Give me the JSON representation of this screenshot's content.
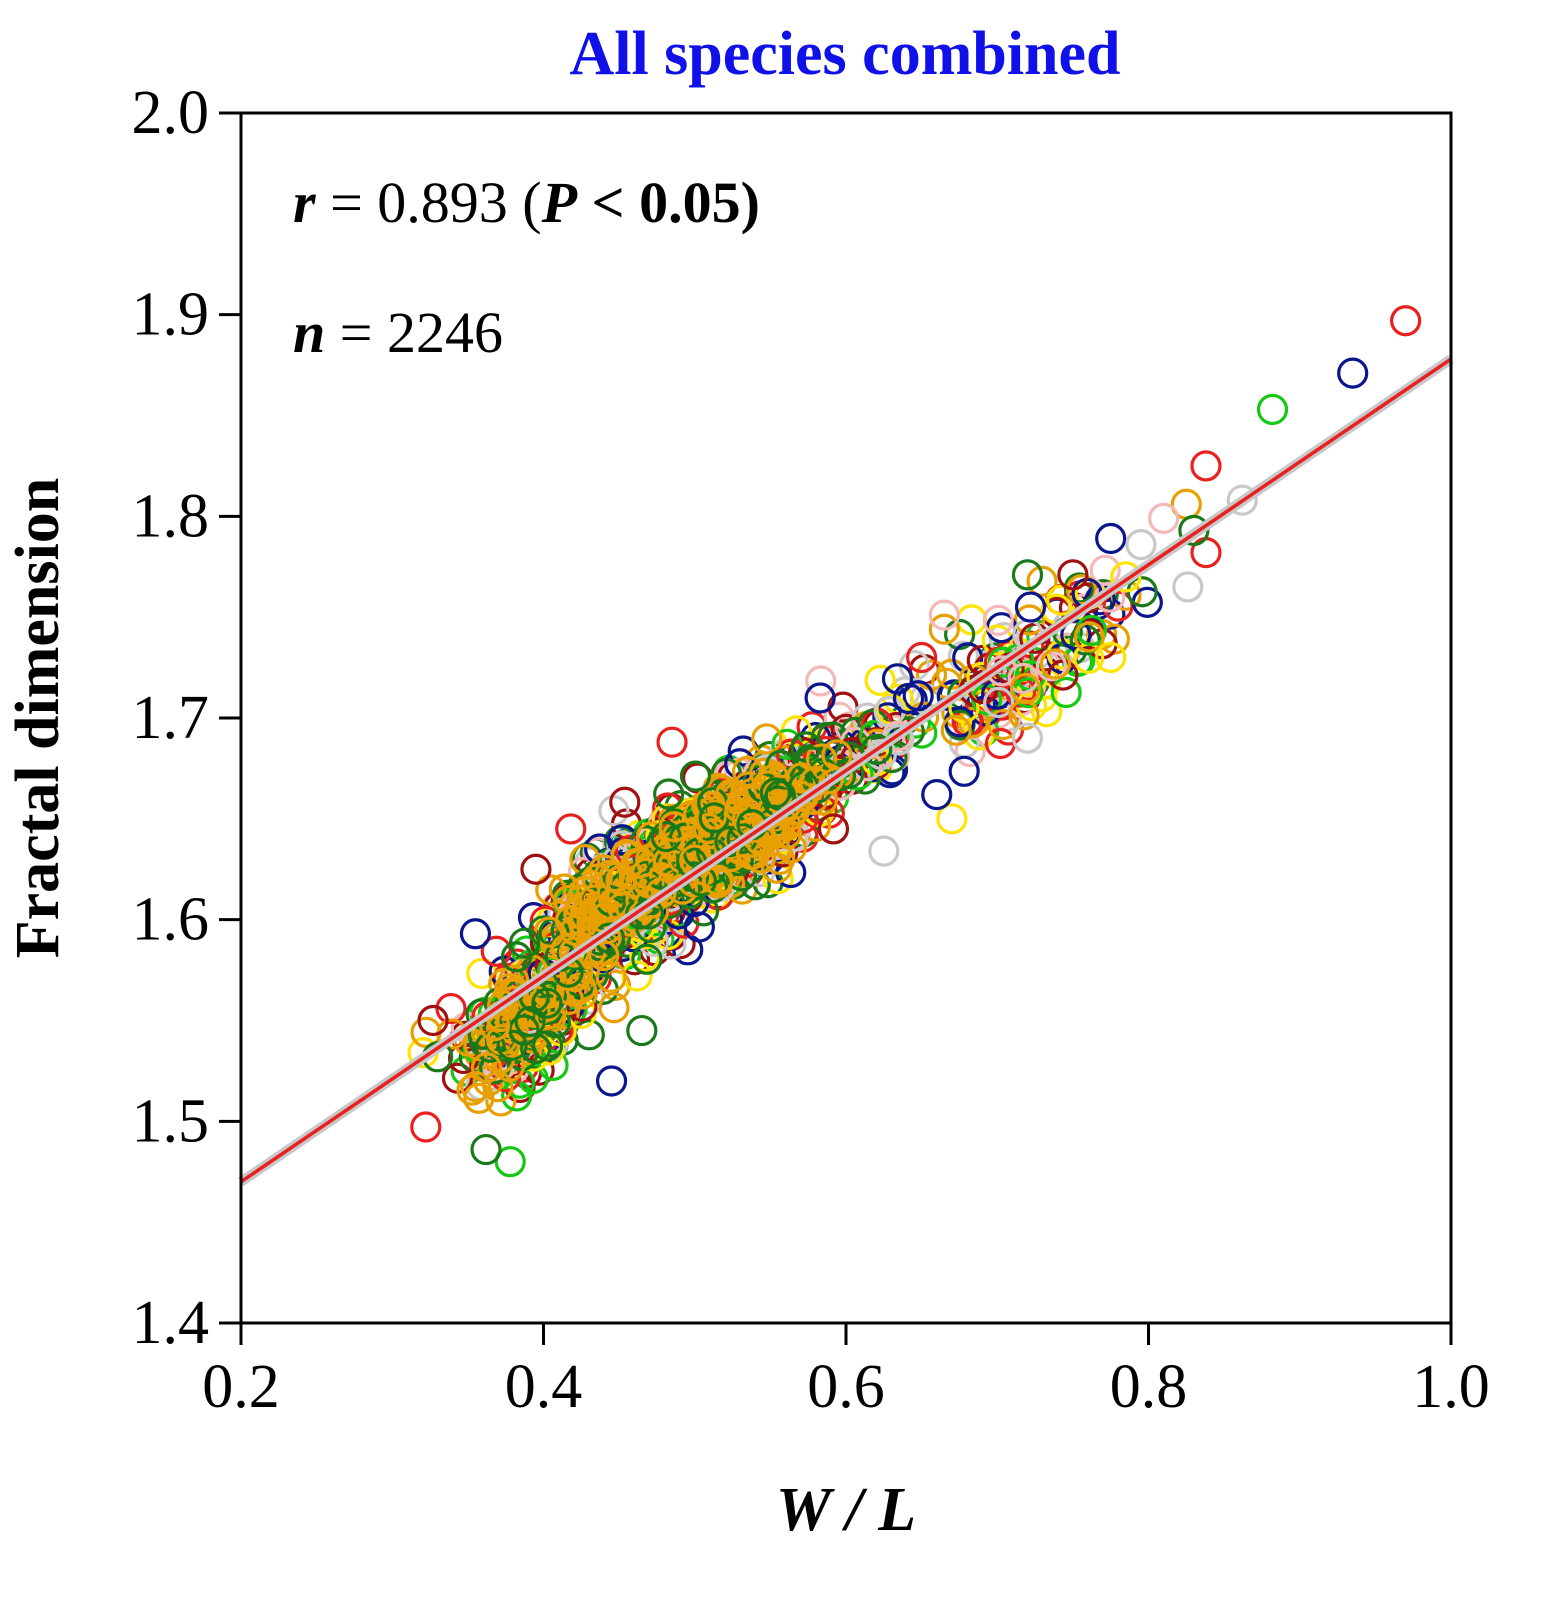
{
  "chart_data": {
    "type": "scatter",
    "title": "All species combined",
    "xlabel": "W / L",
    "ylabel": "Fractal dimension",
    "xlim": [
      0.2,
      1.0
    ],
    "ylim": [
      1.4,
      2.0
    ],
    "xticks": [
      "0.2",
      "0.4",
      "0.6",
      "0.8",
      "1.0"
    ],
    "yticks": [
      "1.4",
      "1.5",
      "1.6",
      "1.7",
      "1.8",
      "1.9",
      "2.0"
    ],
    "annotations": {
      "r_symbol": "r",
      "r_text": " = 0.893 (",
      "p_symbol": "P",
      "p_text": " < 0.05)",
      "n_symbol": "n",
      "n_text": " = 2246"
    },
    "fit_line": {
      "slope": 0.51,
      "intercept": 1.368,
      "x_range": [
        0.2,
        1.0
      ],
      "color": "#e8201f"
    },
    "series_colors": [
      "#e8201f",
      "#0a168c",
      "#14c814",
      "#a01010",
      "#ffe400",
      "#f5b8b8",
      "#c8c8c8",
      "#e8a000",
      "#1a7a1a"
    ],
    "outliers": [
      {
        "x": 0.97,
        "y": 1.897,
        "color": "#e8201f"
      },
      {
        "x": 0.935,
        "y": 1.871,
        "color": "#0a168c"
      },
      {
        "x": 0.882,
        "y": 1.853,
        "color": "#14c814"
      },
      {
        "x": 0.838,
        "y": 1.825,
        "color": "#e8201f"
      },
      {
        "x": 0.838,
        "y": 1.782,
        "color": "#e8201f"
      },
      {
        "x": 0.862,
        "y": 1.808,
        "color": "#c8c8c8"
      },
      {
        "x": 0.825,
        "y": 1.806,
        "color": "#e8a000"
      },
      {
        "x": 0.83,
        "y": 1.793,
        "color": "#1a7a1a"
      },
      {
        "x": 0.826,
        "y": 1.765,
        "color": "#c8c8c8"
      },
      {
        "x": 0.775,
        "y": 1.789,
        "color": "#0a168c"
      },
      {
        "x": 0.795,
        "y": 1.786,
        "color": "#c8c8c8"
      },
      {
        "x": 0.81,
        "y": 1.799,
        "color": "#f5b8b8"
      },
      {
        "x": 0.72,
        "y": 1.771,
        "color": "#1a7a1a"
      },
      {
        "x": 0.722,
        "y": 1.755,
        "color": "#0a168c"
      },
      {
        "x": 0.75,
        "y": 1.771,
        "color": "#a01010"
      },
      {
        "x": 0.665,
        "y": 1.744,
        "color": "#e8a000"
      },
      {
        "x": 0.665,
        "y": 1.751,
        "color": "#f5b8b8"
      },
      {
        "x": 0.65,
        "y": 1.73,
        "color": "#e8201f"
      },
      {
        "x": 0.67,
        "y": 1.65,
        "color": "#ffe400"
      },
      {
        "x": 0.66,
        "y": 1.662,
        "color": "#0a168c"
      },
      {
        "x": 0.625,
        "y": 1.634,
        "color": "#c8c8c8"
      },
      {
        "x": 0.445,
        "y": 1.52,
        "color": "#0a168c"
      },
      {
        "x": 0.378,
        "y": 1.48,
        "color": "#14c814"
      },
      {
        "x": 0.362,
        "y": 1.486,
        "color": "#1a7a1a"
      },
      {
        "x": 0.327,
        "y": 1.55,
        "color": "#a01010"
      },
      {
        "x": 0.355,
        "y": 1.593,
        "color": "#0a168c"
      },
      {
        "x": 0.33,
        "y": 1.532,
        "color": "#1a7a1a"
      },
      {
        "x": 0.465,
        "y": 1.545,
        "color": "#1a7a1a"
      },
      {
        "x": 0.395,
        "y": 1.625,
        "color": "#a01010"
      },
      {
        "x": 0.418,
        "y": 1.645,
        "color": "#e8201f"
      },
      {
        "x": 0.485,
        "y": 1.688,
        "color": "#e8201f"
      },
      {
        "x": 0.72,
        "y": 1.69,
        "color": "#c8c8c8"
      },
      {
        "x": 0.775,
        "y": 1.73,
        "color": "#ffe400"
      },
      {
        "x": 0.785,
        "y": 1.77,
        "color": "#ffe400"
      }
    ],
    "clusters": [
      {
        "cx": 0.39,
        "cy": 1.55,
        "sx": 0.02,
        "count": 260
      },
      {
        "cx": 0.44,
        "cy": 1.61,
        "sx": 0.025,
        "count": 320
      },
      {
        "cx": 0.5,
        "cy": 1.635,
        "sx": 0.03,
        "count": 360
      },
      {
        "cx": 0.55,
        "cy": 1.655,
        "sx": 0.025,
        "count": 260
      },
      {
        "cx": 0.62,
        "cy": 1.69,
        "sx": 0.025,
        "count": 90
      },
      {
        "cx": 0.71,
        "cy": 1.715,
        "sx": 0.02,
        "count": 90
      },
      {
        "cx": 0.76,
        "cy": 1.745,
        "sx": 0.015,
        "count": 40
      }
    ]
  }
}
